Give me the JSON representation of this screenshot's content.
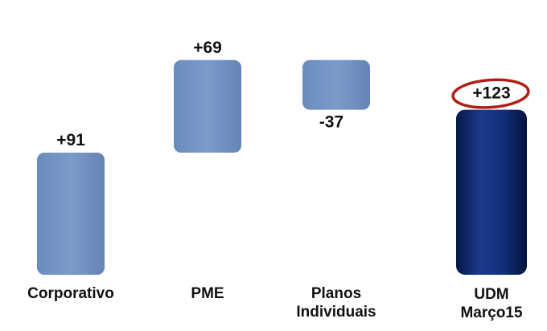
{
  "chart_data": {
    "type": "bar",
    "subtype": "waterfall",
    "title": "",
    "xlabel": "",
    "ylabel": "",
    "categories": [
      "Corporativo",
      "PME",
      "Planos\nIndividuais",
      "UDM\nMarço15"
    ],
    "values": [
      91,
      69,
      -37,
      123
    ],
    "value_labels": [
      "+91",
      "+69",
      "-37",
      "+123"
    ],
    "bar_kind": [
      "increment",
      "increment",
      "decrement",
      "total"
    ],
    "highlighted": "+123",
    "ylim": [
      0,
      165
    ],
    "grid": false,
    "legend": "none"
  },
  "colors": {
    "increment_bar": "#7194c2",
    "total_bar": "#0b2060",
    "highlight_ring": "#b02018",
    "label_text": "#111111"
  }
}
